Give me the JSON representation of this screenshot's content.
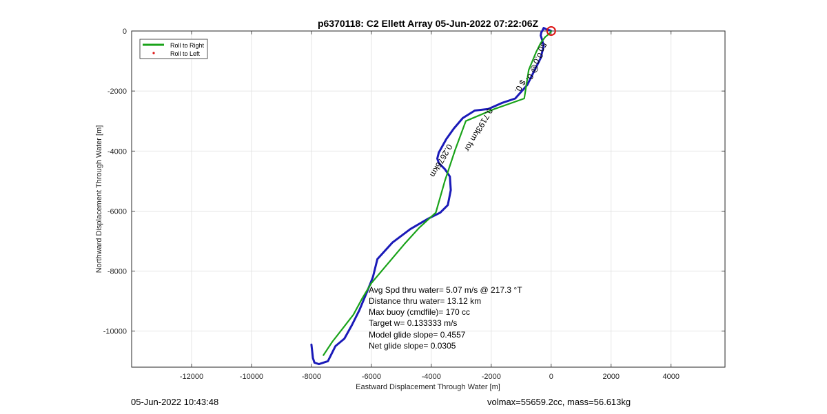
{
  "chart_data": {
    "type": "line",
    "title": "p6370118: C2 Ellett Array 05-Jun-2022 07:22:06Z",
    "xlabel": "Eastward Displacement Through Water [m]",
    "ylabel": "Northward Displacement Through Water [m]",
    "xlim": [
      -14000,
      5800
    ],
    "ylim": [
      -11200,
      0
    ],
    "xticks": [
      -12000,
      -10000,
      -8000,
      -6000,
      -4000,
      -2000,
      0,
      2000,
      4000
    ],
    "yticks": [
      0,
      -2000,
      -4000,
      -6000,
      -8000,
      -10000
    ],
    "grid": true,
    "legend_position": "top-left",
    "legend": [
      {
        "name": "Roll to Right",
        "color": "#1aa31a",
        "marker": "line"
      },
      {
        "name": "Roll to Left",
        "color": "#dd1111",
        "marker": "dot"
      }
    ],
    "series": [
      {
        "color": "#1a1ab8",
        "x": [
          -8000,
          -7950,
          -7900,
          -7750,
          -7450,
          -7200,
          -6900,
          -6650,
          -6400,
          -6150,
          -5950,
          -5800,
          -5300,
          -4700,
          -4100,
          -3700,
          -3450,
          -3350,
          -3380,
          -3550,
          -3750,
          -3800,
          -3750,
          -3500,
          -3250,
          -2950,
          -2550,
          -2100,
          -1650,
          -1200,
          -800,
          -550,
          -350,
          -250,
          -300,
          -350,
          -330,
          -300,
          -250,
          -150,
          -40,
          0
        ],
        "y": [
          -10450,
          -10900,
          -11050,
          -11100,
          -11000,
          -10500,
          -10250,
          -9800,
          -9300,
          -8700,
          -8200,
          -7600,
          -7050,
          -6600,
          -6250,
          -6050,
          -5800,
          -5300,
          -4850,
          -4600,
          -4400,
          -4250,
          -4050,
          -3600,
          -3250,
          -2900,
          -2650,
          -2600,
          -2400,
          -2250,
          -1800,
          -1300,
          -900,
          -500,
          -300,
          -150,
          -50,
          0,
          100,
          50,
          20,
          0
        ]
      },
      {
        "name": "Roll to Right",
        "color": "#1aa31a",
        "x": [
          -7600,
          -7300,
          -6950,
          -6600,
          -6300,
          -6000,
          -5450,
          -4900,
          -4400,
          -3850,
          -3550,
          -3200,
          -2850,
          -1900,
          -900,
          -750,
          -500,
          -350,
          -200,
          -50,
          0
        ],
        "y": [
          -10800,
          -10350,
          -9900,
          -9450,
          -8900,
          -8400,
          -7750,
          -7100,
          -6550,
          -6050,
          -5000,
          -3950,
          -3000,
          -2600,
          -2250,
          -1300,
          -700,
          -400,
          -200,
          -80,
          0
        ]
      }
    ],
    "annotations": [
      {
        "text": "Avg Spd thru water=  5.07 m/s @ 217.3 °T"
      },
      {
        "text": "Distance thru water= 13.12 km"
      },
      {
        "text": "Max buoy (cmdfile)= 170 cc"
      },
      {
        "text": "Target w= 0.133333 m/s"
      },
      {
        "text": "Model glide slope= 0.4557"
      },
      {
        "text": "Net glide slope= 0.0305"
      }
    ],
    "rotated_labels": [
      {
        "text": "0.2676km",
        "x": -3450,
        "y": -3750
      },
      {
        "text": "0.7193km for",
        "x": -2100,
        "y": -2550
      },
      {
        "text": "$ 0.",
        "x": -1000,
        "y": -1600
      },
      {
        "text": "@ 0.",
        "x": -560,
        "y": -1100
      },
      {
        "text": "0.0",
        "x": -420,
        "y": -700
      },
      {
        "text": "50",
        "x": -300,
        "y": -350
      }
    ],
    "marker": {
      "x": 0,
      "y": 0,
      "color": "#dd1111"
    }
  },
  "footer": {
    "left": "05-Jun-2022 10:43:48",
    "right": "volmax=55659.2cc, mass=56.613kg"
  }
}
